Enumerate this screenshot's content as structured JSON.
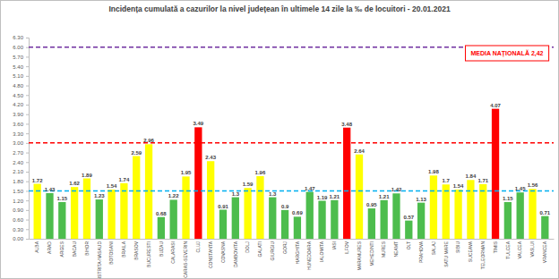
{
  "chart_data": {
    "type": "bar",
    "title": "Incidența cumulată a cazurilor la nivel județean în ultimele 14 zile la ‰ de locuitori - 20.01.2021",
    "categories": [
      "ALBA",
      "ARAD",
      "ARGES",
      "BACAU",
      "BIHOR",
      "BISTRITA-NASAUD",
      "BOTOSANI",
      "BRAILA",
      "BRASOV",
      "BUCURESTI",
      "BUZAU",
      "CALARASI",
      "CARAS-SEVERIN",
      "CLUJ",
      "CONSTANTA",
      "COVASNA",
      "DAMBOVITA",
      "DOLJ",
      "GALATI",
      "GIURGIU",
      "GORJ",
      "HARGHITA",
      "HUNEDOARA",
      "IALOMITA",
      "IASI",
      "ILFOV",
      "MARAMURES",
      "MEHEDINTI",
      "MURES",
      "NEAMT",
      "OLT",
      "PRAHOVA",
      "SALAJ",
      "SATU MARE",
      "SIBIU",
      "SUCEAVA",
      "TELEORMAN",
      "TIMIS",
      "TULCEA",
      "VALCEA",
      "VASLUI",
      "VRANCEA"
    ],
    "values": [
      1.72,
      1.43,
      1.15,
      1.62,
      1.89,
      1.23,
      1.54,
      1.74,
      2.59,
      2.96,
      0.68,
      1.22,
      1.95,
      3.49,
      2.43,
      0.91,
      1.3,
      1.59,
      1.96,
      1.3,
      0.9,
      0.69,
      1.47,
      1.19,
      1.21,
      3.48,
      2.64,
      0.95,
      1.21,
      1.42,
      0.57,
      1.13,
      1.98,
      1.7,
      1.54,
      1.84,
      1.71,
      4.07,
      1.15,
      1.45,
      1.56,
      0.71
    ],
    "colors": [
      "#ffff00",
      "#4dbd4d",
      "#4dbd4d",
      "#ffff00",
      "#ffff00",
      "#4dbd4d",
      "#ffff00",
      "#ffff00",
      "#ffff00",
      "#ffff00",
      "#4dbd4d",
      "#4dbd4d",
      "#ffff00",
      "#ff0000",
      "#ffff00",
      "#4dbd4d",
      "#4dbd4d",
      "#ffff00",
      "#ffff00",
      "#4dbd4d",
      "#4dbd4d",
      "#4dbd4d",
      "#4dbd4d",
      "#4dbd4d",
      "#4dbd4d",
      "#ff0000",
      "#ffff00",
      "#4dbd4d",
      "#4dbd4d",
      "#4dbd4d",
      "#4dbd4d",
      "#4dbd4d",
      "#ffff00",
      "#ffff00",
      "#ffff00",
      "#ffff00",
      "#ffff00",
      "#ff0000",
      "#4dbd4d",
      "#4dbd4d",
      "#ffff00",
      "#4dbd4d"
    ],
    "data_labels": true,
    "grid": false,
    "ylim": [
      0,
      6.3
    ],
    "yticks": [
      {
        "value": 0,
        "label": "0.00"
      },
      {
        "value": 0.3,
        "label": "0.30"
      },
      {
        "value": 0.6,
        "label": "0.60"
      },
      {
        "value": 0.9,
        "label": "0.90"
      },
      {
        "value": 1.2,
        "label": "1.20"
      },
      {
        "value": 1.5,
        "label": "1.50"
      },
      {
        "value": 1.8,
        "label": "1.80"
      },
      {
        "value": 2.1,
        "label": "2.10"
      },
      {
        "value": 2.4,
        "label": "2.40"
      },
      {
        "value": 2.7,
        "label": "2.70"
      },
      {
        "value": 3,
        "label": "3.00"
      },
      {
        "value": 3.3,
        "label": "3.30"
      },
      {
        "value": 3.6,
        "label": "3.60"
      },
      {
        "value": 3.9,
        "label": "3.90"
      },
      {
        "value": 4.2,
        "label": "4.20"
      },
      {
        "value": 4.5,
        "label": "4.50"
      },
      {
        "value": 4.8,
        "label": "4.80"
      },
      {
        "value": 5.1,
        "label": "5.10"
      },
      {
        "value": 5.4,
        "label": "5.40"
      },
      {
        "value": 5.7,
        "label": "5.70"
      },
      {
        "value": 6,
        "label": "6.00"
      },
      {
        "value": 6.3,
        "label": "6.30"
      }
    ],
    "reference_lines": [
      {
        "value": 6,
        "color": "#7030a0"
      },
      {
        "value": 3,
        "color": "#ff0000"
      },
      {
        "value": 1.5,
        "color": "#00b0f0"
      }
    ],
    "annotations": [
      "MEDIA NAȚIONALĂ 2,42"
    ]
  }
}
